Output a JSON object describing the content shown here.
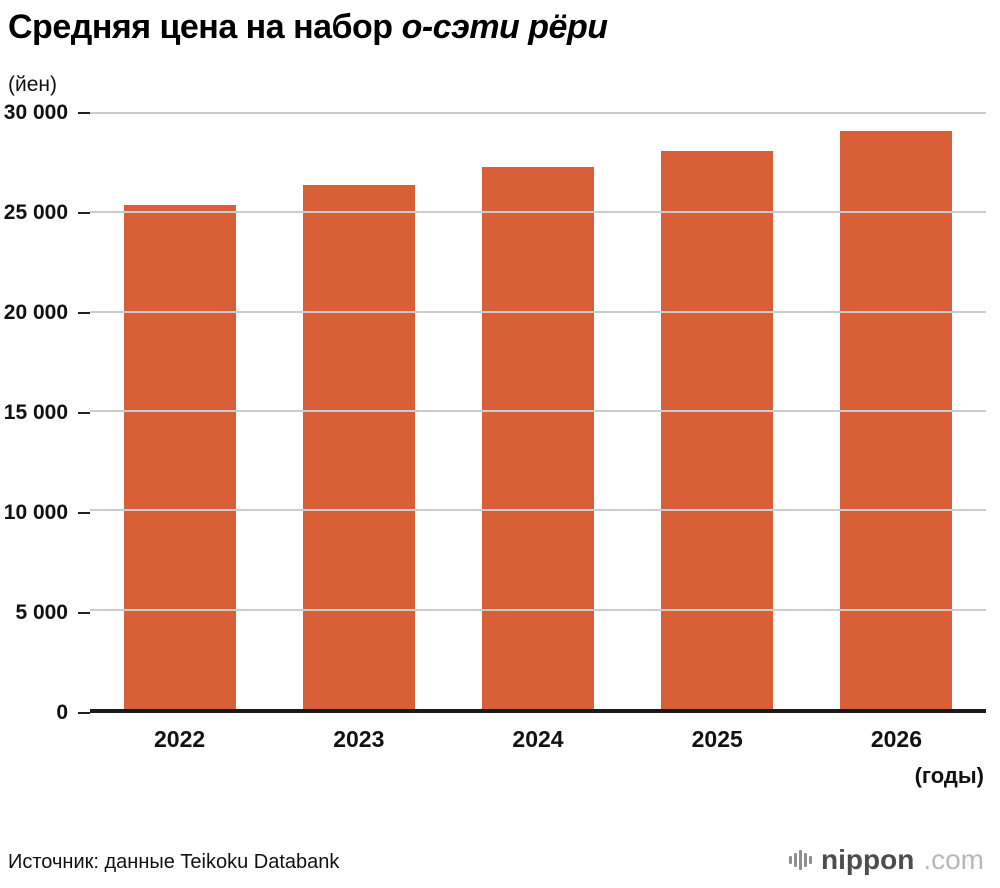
{
  "title": {
    "main": "Средняя цена на набор",
    "italic": "о-сэти рёри"
  },
  "y_unit": "(йен)",
  "x_unit": "(годы)",
  "source": "Источник: данные Teikoku Databank",
  "logo": {
    "name": "nippon",
    "tld": ".com",
    "icon": "waveform-bars-icon"
  },
  "chart_data": {
    "type": "bar",
    "title": "Средняя цена на набор о-сэти рёри",
    "ylabel": "(йен)",
    "xlabel": "(годы)",
    "categories": [
      "2022",
      "2023",
      "2024",
      "2025",
      "2026"
    ],
    "values": [
      25350,
      26400,
      27300,
      28100,
      29100
    ],
    "ylim": [
      0,
      30000
    ],
    "yticks": [
      0,
      5000,
      10000,
      15000,
      20000,
      25000,
      30000
    ],
    "ytick_labels": [
      "0",
      "5 000",
      "10 000",
      "15 000",
      "20 000",
      "25 000",
      "30 000"
    ],
    "bar_color": "#d95f39",
    "grid": true,
    "legend": false
  }
}
